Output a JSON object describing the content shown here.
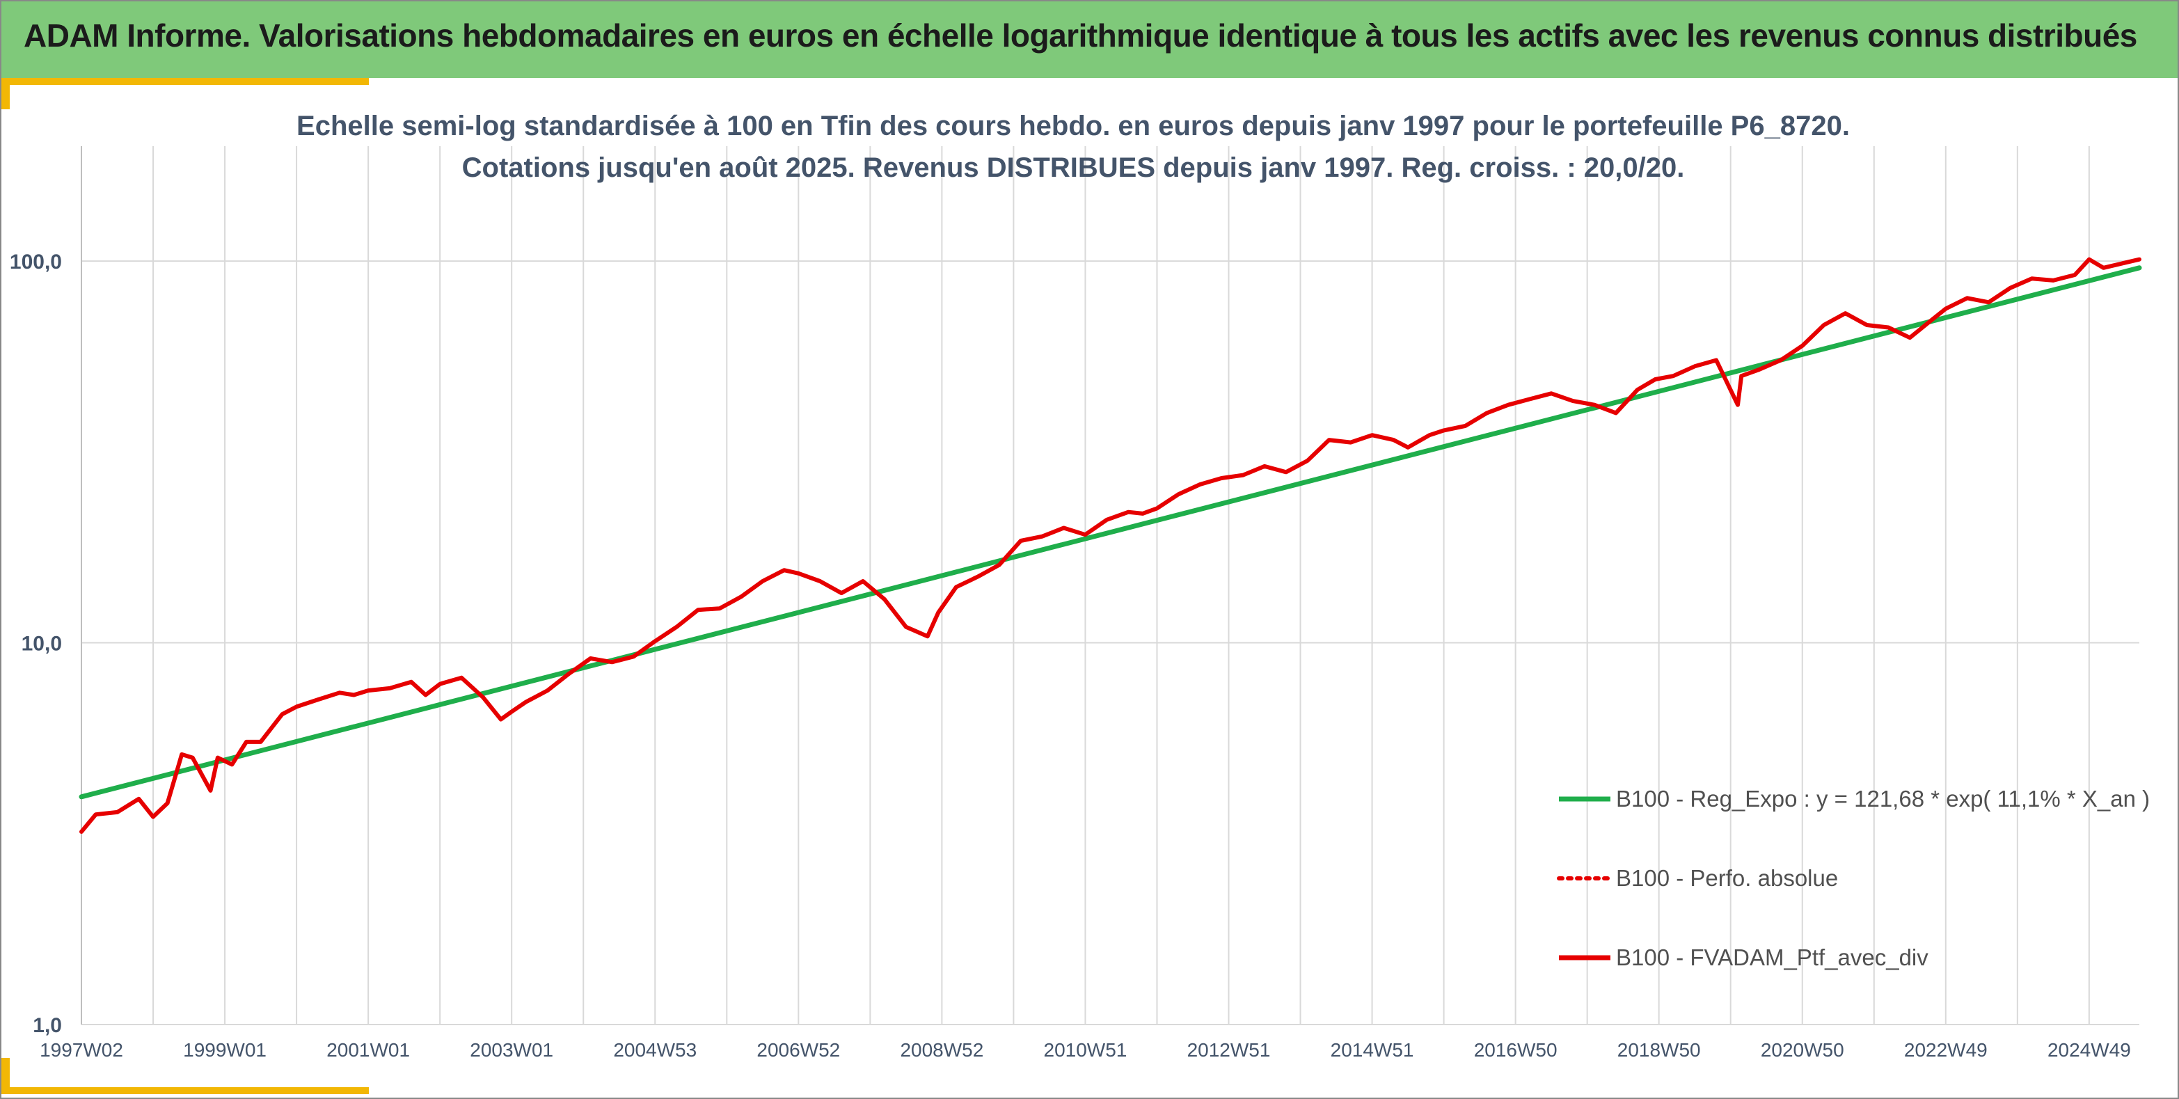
{
  "banner": {
    "title": "ADAM Informe. Valorisations hebdomadaires en euros en échelle logarithmique identique à tous les actifs avec les revenus connus distribués",
    "background": "#7fc97a",
    "accent": "#f2b705"
  },
  "chart_data": {
    "type": "line",
    "title_lines": [
      "Echelle semi-log standardisée à 100 en Tfin des cours hebdo. en euros depuis janv 1997 pour le portefeuille P6_8720.",
      "Cotations jusqu'en août 2025. Revenus DISTRIBUES depuis janv 1997. Reg. croiss. : 20,0/20."
    ],
    "y_scale": "log",
    "ylim": [
      1,
      200
    ],
    "xlim": [
      1997.0,
      2025.7
    ],
    "y_ticks": [
      {
        "value": 1,
        "label": "1,0"
      },
      {
        "value": 10,
        "label": "10,0"
      },
      {
        "value": 100,
        "label": "100,0"
      }
    ],
    "x_tick_labels": [
      {
        "x": 1997.0,
        "label": "1997W02"
      },
      {
        "x": 1999.0,
        "label": "1999W01"
      },
      {
        "x": 2001.0,
        "label": "2001W01"
      },
      {
        "x": 2003.0,
        "label": "2003W01"
      },
      {
        "x": 2005.0,
        "label": "2004W53"
      },
      {
        "x": 2007.0,
        "label": "2006W52"
      },
      {
        "x": 2009.0,
        "label": "2008W52"
      },
      {
        "x": 2011.0,
        "label": "2010W51"
      },
      {
        "x": 2013.0,
        "label": "2012W51"
      },
      {
        "x": 2015.0,
        "label": "2014W51"
      },
      {
        "x": 2017.0,
        "label": "2016W50"
      },
      {
        "x": 2019.0,
        "label": "2018W50"
      },
      {
        "x": 2021.0,
        "label": "2020W50"
      },
      {
        "x": 2023.0,
        "label": "2022W49"
      },
      {
        "x": 2025.0,
        "label": "2024W49"
      }
    ],
    "grid": {
      "vertical": true,
      "horizontal": true,
      "color": "#d9d9d9"
    },
    "legend_position": "right",
    "series": [
      {
        "name": "B100 - Reg_Expo : y = 121,68 * exp( 11,1% *  X_an )",
        "style": "solid",
        "color": "#1fae4b",
        "x": [
          1997.0,
          2025.7
        ],
        "y": [
          3.95,
          96.0
        ]
      },
      {
        "name": "B100 - Perfo. absolue",
        "style": "dotted",
        "color": "#e60000",
        "x": [],
        "y": []
      },
      {
        "name": "B100 - FVADAM_Ptf_avec_div",
        "style": "solid",
        "color": "#e60000",
        "x": [
          1997.0,
          1997.2,
          1997.5,
          1997.8,
          1998.0,
          1998.2,
          1998.4,
          1998.55,
          1998.8,
          1998.9,
          1999.1,
          1999.3,
          1999.5,
          1999.8,
          2000.0,
          2000.3,
          2000.6,
          2000.8,
          2001.0,
          2001.3,
          2001.6,
          2001.8,
          2002.0,
          2002.3,
          2002.6,
          2002.85,
          2003.0,
          2003.2,
          2003.5,
          2003.8,
          2004.1,
          2004.4,
          2004.7,
          2005.0,
          2005.3,
          2005.6,
          2005.9,
          2006.2,
          2006.5,
          2006.8,
          2007.0,
          2007.3,
          2007.6,
          2007.9,
          2008.2,
          2008.5,
          2008.8,
          2008.95,
          2009.2,
          2009.5,
          2009.8,
          2010.1,
          2010.4,
          2010.7,
          2011.0,
          2011.3,
          2011.6,
          2011.8,
          2012.0,
          2012.3,
          2012.6,
          2012.9,
          2013.2,
          2013.5,
          2013.8,
          2014.1,
          2014.4,
          2014.7,
          2015.0,
          2015.3,
          2015.5,
          2015.8,
          2016.0,
          2016.3,
          2016.6,
          2016.9,
          2017.2,
          2017.5,
          2017.8,
          2018.1,
          2018.4,
          2018.7,
          2018.95,
          2019.2,
          2019.5,
          2019.8,
          2020.1,
          2020.15,
          2020.4,
          2020.7,
          2021.0,
          2021.3,
          2021.6,
          2021.9,
          2022.2,
          2022.5,
          2022.8,
          2023.0,
          2023.3,
          2023.6,
          2023.9,
          2024.2,
          2024.5,
          2024.8,
          2025.0,
          2025.2,
          2025.4,
          2025.7
        ],
        "y": [
          3.2,
          3.55,
          3.6,
          3.9,
          3.5,
          3.8,
          5.1,
          5.0,
          4.1,
          5.0,
          4.8,
          5.5,
          5.5,
          6.5,
          6.8,
          7.1,
          7.4,
          7.3,
          7.5,
          7.6,
          7.9,
          7.3,
          7.8,
          8.1,
          7.2,
          6.3,
          6.6,
          7.0,
          7.5,
          8.3,
          9.1,
          8.9,
          9.2,
          10.1,
          11.0,
          12.2,
          12.3,
          13.2,
          14.5,
          15.5,
          15.2,
          14.5,
          13.5,
          14.5,
          13.0,
          11.0,
          10.4,
          12.0,
          14.0,
          14.9,
          16.0,
          18.5,
          19.0,
          20.0,
          19.2,
          21.0,
          22.0,
          21.8,
          22.5,
          24.5,
          26.0,
          27.0,
          27.5,
          29.0,
          28.0,
          30.0,
          34.0,
          33.5,
          35.0,
          34.0,
          32.5,
          35.0,
          36.0,
          37.0,
          40.0,
          42.0,
          43.5,
          45.0,
          43.0,
          42.0,
          40.0,
          46.0,
          49.0,
          50.0,
          53.0,
          55.0,
          42.0,
          50.0,
          52.0,
          55.0,
          60.0,
          68.0,
          73.0,
          68.0,
          67.0,
          63.0,
          70.0,
          75.0,
          80.0,
          78.0,
          85.0,
          90.0,
          89.0,
          92.0,
          101.0,
          96.0,
          98.0,
          101.0
        ]
      }
    ]
  }
}
